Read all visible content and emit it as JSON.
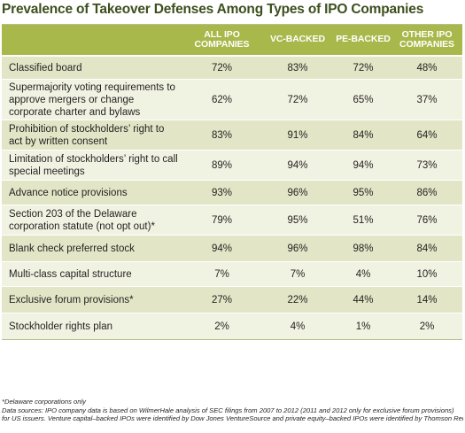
{
  "title": "Prevalence of Takeover Defenses Among Types of IPO Companies",
  "chart_data": {
    "type": "table",
    "columns": [
      "",
      "ALL IPO COMPANIES",
      "VC-BACKED",
      "PE-BACKED",
      "OTHER IPO COMPANIES"
    ],
    "rows": [
      {
        "label": "Classified board",
        "values": [
          "72%",
          "83%",
          "72%",
          "48%"
        ]
      },
      {
        "label": "Supermajority voting requirements to approve mergers or change corporate charter and bylaws",
        "values": [
          "62%",
          "72%",
          "65%",
          "37%"
        ]
      },
      {
        "label": "Prohibition of stockholders’ right to act by written consent",
        "values": [
          "83%",
          "91%",
          "84%",
          "64%"
        ]
      },
      {
        "label": "Limitation of stockholders’ right to call special meetings",
        "values": [
          "89%",
          "94%",
          "94%",
          "73%"
        ]
      },
      {
        "label": "Advance notice provisions",
        "values": [
          "93%",
          "96%",
          "95%",
          "86%"
        ]
      },
      {
        "label": "Section 203 of the Delaware corporation statute (not opt out)*",
        "values": [
          "79%",
          "95%",
          "51%",
          "76%"
        ]
      },
      {
        "label": "Blank check preferred stock",
        "values": [
          "94%",
          "96%",
          "98%",
          "84%"
        ]
      },
      {
        "label": "Multi-class capital structure",
        "values": [
          "7%",
          "7%",
          "4%",
          "10%"
        ]
      },
      {
        "label": "Exclusive forum provisions*",
        "values": [
          "27%",
          "22%",
          "44%",
          "14%"
        ]
      },
      {
        "label": "Stockholder rights plan",
        "values": [
          "2%",
          "4%",
          "1%",
          "2%"
        ]
      }
    ]
  },
  "footnotes": [
    "*Delaware corporations only",
    "Data sources: IPO company data is based on WilmerHale analysis of SEC filings from 2007 to 2012 (2011 and 2012 only for exclusive forum provisions)",
    "for US issuers. Venture capital–backed IPOs were identified by Dow Jones VentureSource and private equity–backed IPOs were identified by Thomson Reuters."
  ],
  "colors": {
    "header_bg": "#a8b84a",
    "row_dark": "#e2e6c6",
    "row_light": "#f1f3e2",
    "title": "#3d4f1e"
  }
}
